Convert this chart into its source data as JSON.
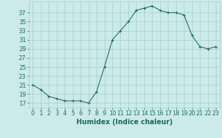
{
  "x": [
    0,
    1,
    2,
    3,
    4,
    5,
    6,
    7,
    8,
    9,
    10,
    11,
    12,
    13,
    14,
    15,
    16,
    17,
    18,
    19,
    20,
    21,
    22,
    23
  ],
  "y": [
    21,
    20,
    18.5,
    18,
    17.5,
    17.5,
    17.5,
    17,
    19.5,
    25,
    31,
    33,
    35,
    37.5,
    38,
    38.5,
    37.5,
    37,
    37,
    36.5,
    32,
    29.5,
    29,
    29.5
  ],
  "line_color": "#1a6b5c",
  "marker": "+",
  "bg_color": "#cceaea",
  "grid_color": "#aad0d0",
  "xlabel": "Humidex (Indice chaleur)",
  "ylabel_ticks": [
    17,
    19,
    21,
    23,
    25,
    27,
    29,
    31,
    33,
    35,
    37
  ],
  "ylim": [
    16.0,
    39.5
  ],
  "xlim": [
    -0.5,
    23.5
  ],
  "label_fontsize": 7,
  "tick_fontsize": 6
}
